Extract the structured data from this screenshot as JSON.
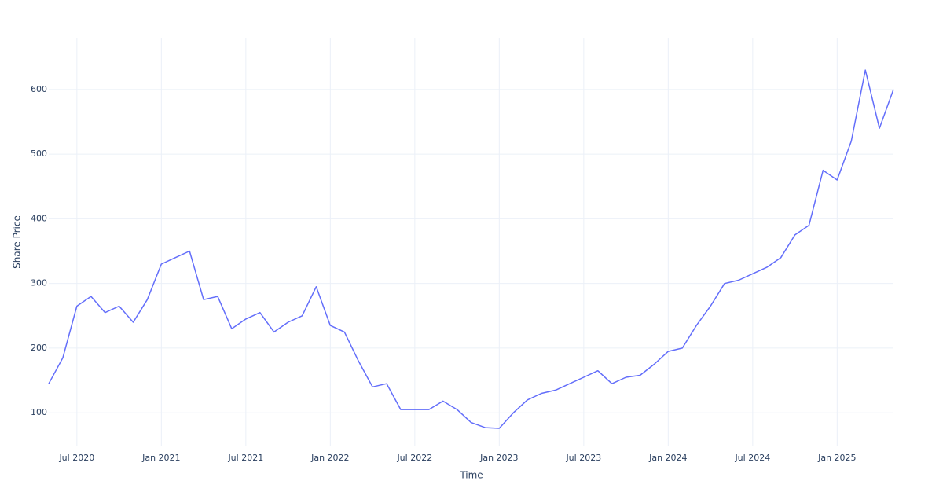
{
  "chart_data": {
    "type": "line",
    "x_label": "Time",
    "y_label": "Share Price",
    "x": [
      "2020-05",
      "2020-06",
      "2020-07",
      "2020-08",
      "2020-09",
      "2020-10",
      "2020-11",
      "2020-12",
      "2021-01",
      "2021-02",
      "2021-03",
      "2021-04",
      "2021-05",
      "2021-06",
      "2021-07",
      "2021-08",
      "2021-09",
      "2021-10",
      "2021-11",
      "2021-12",
      "2022-01",
      "2022-02",
      "2022-03",
      "2022-04",
      "2022-05",
      "2022-06",
      "2022-07",
      "2022-08",
      "2022-09",
      "2022-10",
      "2022-11",
      "2022-12",
      "2023-01",
      "2023-02",
      "2023-03",
      "2023-04",
      "2023-05",
      "2023-06",
      "2023-07",
      "2023-08",
      "2023-09",
      "2023-10",
      "2023-11",
      "2023-12",
      "2024-01",
      "2024-02",
      "2024-03",
      "2024-04",
      "2024-05",
      "2024-06",
      "2024-07",
      "2024-08",
      "2024-09",
      "2024-10",
      "2024-11",
      "2024-12",
      "2025-01",
      "2025-02",
      "2025-03",
      "2025-04",
      "2025-05"
    ],
    "series": [
      {
        "color": "#636efa",
        "values": [
          145,
          185,
          265,
          280,
          255,
          265,
          240,
          275,
          330,
          340,
          350,
          275,
          280,
          230,
          245,
          255,
          225,
          240,
          250,
          295,
          235,
          225,
          180,
          140,
          145,
          105,
          105,
          105,
          118,
          105,
          85,
          77,
          76,
          100,
          120,
          130,
          135,
          145,
          155,
          165,
          145,
          155,
          158,
          175,
          195,
          200,
          235,
          265,
          300,
          305,
          315,
          325,
          340,
          375,
          390,
          475,
          460,
          520,
          630,
          540,
          600
        ]
      }
    ],
    "xlim": [
      "2020-05",
      "2025-05"
    ],
    "xticks": [
      {
        "value": "2020-07",
        "label": "Jul 2020"
      },
      {
        "value": "2021-01",
        "label": "Jan 2021"
      },
      {
        "value": "2021-07",
        "label": "Jul 2021"
      },
      {
        "value": "2022-01",
        "label": "Jan 2022"
      },
      {
        "value": "2022-07",
        "label": "Jul 2022"
      },
      {
        "value": "2023-01",
        "label": "Jan 2023"
      },
      {
        "value": "2023-07",
        "label": "Jul 2023"
      },
      {
        "value": "2024-01",
        "label": "Jan 2024"
      },
      {
        "value": "2024-07",
        "label": "Jul 2024"
      },
      {
        "value": "2025-01",
        "label": "Jan 2025"
      }
    ],
    "ylim": [
      48,
      680
    ],
    "yticks": [
      100,
      200,
      300,
      400,
      500,
      600
    ],
    "grid": true
  }
}
